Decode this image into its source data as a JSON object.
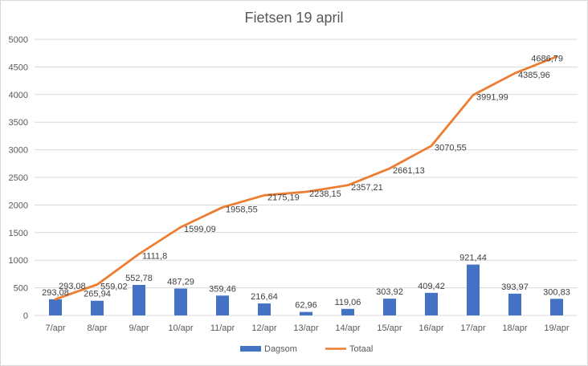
{
  "chart_data": {
    "type": "bar+line",
    "title": "Fietsen 19 april",
    "categories": [
      "7/apr",
      "8/apr",
      "9/apr",
      "10/apr",
      "11/apr",
      "12/apr",
      "13/apr",
      "14/apr",
      "15/apr",
      "16/apr",
      "17/apr",
      "18/apr",
      "19/apr"
    ],
    "series": [
      {
        "name": "Dagsom",
        "type": "bar",
        "color": "#4472c4",
        "values": [
          293.08,
          265.94,
          552.78,
          487.29,
          359.46,
          216.64,
          62.96,
          119.06,
          303.92,
          409.42,
          921.44,
          393.97,
          300.83
        ],
        "labels": [
          "293,08",
          "265,94",
          "552,78",
          "487,29",
          "359,46",
          "216,64",
          "62,96",
          "119,06",
          "303,92",
          "409,42",
          "921,44",
          "393,97",
          "300,83"
        ]
      },
      {
        "name": "Totaal",
        "type": "line",
        "color": "#ed7d31",
        "values": [
          293.08,
          559.02,
          1111.8,
          1599.09,
          1958.55,
          2175.19,
          2238.15,
          2357.21,
          2661.13,
          3070.55,
          3991.99,
          4385.96,
          4686.79
        ],
        "labels": [
          "293,08",
          "559,02",
          "1111,8",
          "1599,09",
          "1958,55",
          "2175,19",
          "2238,15",
          "2357,21",
          "2661,13",
          "3070,55",
          "3991,99",
          "4385,96",
          "4686,79"
        ]
      }
    ],
    "ylim": [
      0,
      5000
    ],
    "yticks": [
      0,
      500,
      1000,
      1500,
      2000,
      2500,
      3000,
      3500,
      4000,
      4500,
      5000
    ],
    "grid": true,
    "legend": "bottom"
  }
}
